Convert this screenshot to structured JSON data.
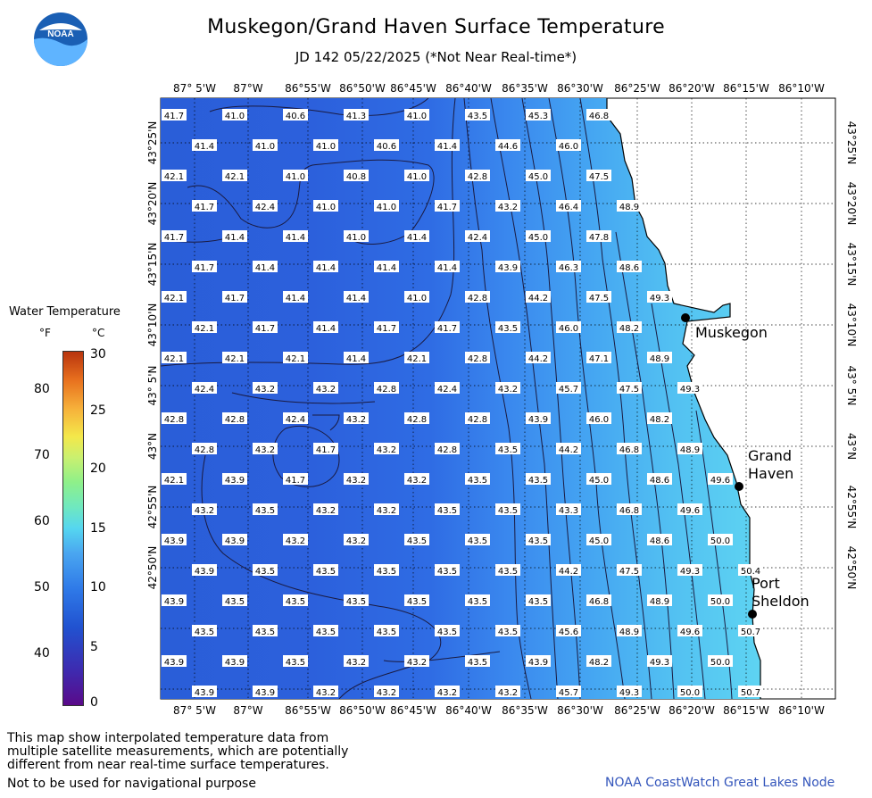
{
  "title": "Muskegon/Grand Haven Surface Temperature",
  "subtitle": "JD 142 05/22/2025 (*Not Near Real-time*)",
  "logo_text": "NOAA",
  "lon_labels": [
    "87° 5'W",
    "87°W",
    "86°55'W",
    "86°50'W",
    "86°45'W",
    "86°40'W",
    "86°35'W",
    "86°30'W",
    "86°25'W",
    "86°20'W",
    "86°15'W",
    "86°10'W"
  ],
  "lat_labels": [
    "43°25'N",
    "43°20'N",
    "43°15'N",
    "43°10'N",
    "43° 5'N",
    "43°N",
    "42°55'N",
    "42°50'N"
  ],
  "places": [
    {
      "name": "Muskegon",
      "lines": [
        "Muskegon"
      ]
    },
    {
      "name": "Grand Haven",
      "lines": [
        "Grand",
        "Haven"
      ]
    },
    {
      "name": "Port Sheldon",
      "lines": [
        "Port",
        "Sheldon"
      ]
    }
  ],
  "legend": {
    "title": "Water Temperature",
    "unit_f": "°F",
    "unit_c": "°C",
    "f_ticks": [
      "80",
      "70",
      "60",
      "50",
      "40"
    ],
    "c_ticks": [
      "30",
      "25",
      "20",
      "15",
      "10",
      "5",
      "0"
    ]
  },
  "grid_values": [
    [
      "41.7",
      "41.0",
      "40.6",
      "41.3",
      "41.0",
      "43.5",
      "45.3",
      "46.8",
      "",
      "",
      "",
      ""
    ],
    [
      "41.4",
      "41.0",
      "41.0",
      "40.6",
      "41.4",
      "44.6",
      "46.0",
      "",
      "",
      "",
      ""
    ],
    [
      "42.1",
      "42.1",
      "41.0",
      "40.8",
      "41.0",
      "42.8",
      "45.0",
      "47.5",
      "",
      "",
      "",
      ""
    ],
    [
      "41.7",
      "42.4",
      "41.0",
      "41.0",
      "41.7",
      "43.2",
      "46.4",
      "48.9",
      "",
      "",
      ""
    ],
    [
      "41.7",
      "41.4",
      "41.4",
      "41.0",
      "41.4",
      "42.4",
      "45.0",
      "47.8",
      "",
      "",
      "",
      ""
    ],
    [
      "41.7",
      "41.4",
      "41.4",
      "41.4",
      "41.4",
      "43.9",
      "46.3",
      "48.6",
      "",
      "",
      ""
    ],
    [
      "42.1",
      "41.7",
      "41.4",
      "41.4",
      "41.0",
      "42.8",
      "44.2",
      "47.5",
      "49.3",
      "",
      "",
      ""
    ],
    [
      "42.1",
      "41.7",
      "41.4",
      "41.7",
      "41.7",
      "43.5",
      "46.0",
      "48.2",
      "",
      "",
      ""
    ],
    [
      "42.1",
      "42.1",
      "42.1",
      "41.4",
      "42.1",
      "42.8",
      "44.2",
      "47.1",
      "48.9",
      "",
      "",
      ""
    ],
    [
      "42.4",
      "43.2",
      "43.2",
      "42.8",
      "42.4",
      "43.2",
      "45.7",
      "47.5",
      "49.3",
      "",
      ""
    ],
    [
      "42.8",
      "42.8",
      "42.4",
      "43.2",
      "42.8",
      "42.8",
      "43.9",
      "46.0",
      "48.2",
      "",
      "",
      ""
    ],
    [
      "42.8",
      "43.2",
      "41.7",
      "43.2",
      "42.8",
      "43.5",
      "44.2",
      "46.8",
      "48.9",
      "",
      ""
    ],
    [
      "42.1",
      "43.9",
      "41.7",
      "43.2",
      "43.2",
      "43.5",
      "43.5",
      "45.0",
      "48.6",
      "49.6",
      "",
      ""
    ],
    [
      "43.2",
      "43.5",
      "43.2",
      "43.2",
      "43.5",
      "43.5",
      "43.3",
      "46.8",
      "49.6",
      "",
      ""
    ],
    [
      "43.9",
      "43.9",
      "43.2",
      "43.2",
      "43.5",
      "43.5",
      "43.5",
      "45.0",
      "48.6",
      "50.0",
      "",
      ""
    ],
    [
      "43.9",
      "43.5",
      "43.5",
      "43.5",
      "43.5",
      "43.5",
      "44.2",
      "47.5",
      "49.3",
      "50.4",
      ""
    ],
    [
      "43.9",
      "43.5",
      "43.5",
      "43.5",
      "43.5",
      "43.5",
      "43.5",
      "46.8",
      "48.9",
      "50.0",
      "",
      ""
    ],
    [
      "43.5",
      "43.5",
      "43.5",
      "43.5",
      "43.5",
      "43.5",
      "45.6",
      "48.9",
      "49.6",
      "50.7",
      ""
    ],
    [
      "43.9",
      "43.9",
      "43.5",
      "43.2",
      "43.2",
      "43.5",
      "43.9",
      "48.2",
      "49.3",
      "50.0",
      "",
      ""
    ],
    [
      "43.9",
      "43.9",
      "43.2",
      "43.2",
      "43.2",
      "43.2",
      "45.7",
      "49.3",
      "50.0",
      "50.7",
      ""
    ]
  ],
  "footnote_lines": [
    "This map show interpolated temperature data from",
    "multiple satellite measurements, which are potentially",
    "different from near real-time surface temperatures."
  ],
  "nav_warning": "Not to be used for navigational purpose",
  "credit": "NOAA CoastWatch Great Lakes Node",
  "colors": {
    "water_deep": "#2a62e0",
    "water_mid": "#3a8af0",
    "water_shallow": "#5ac8f0",
    "land": "#ffffff",
    "label_box": "#ffffff"
  }
}
